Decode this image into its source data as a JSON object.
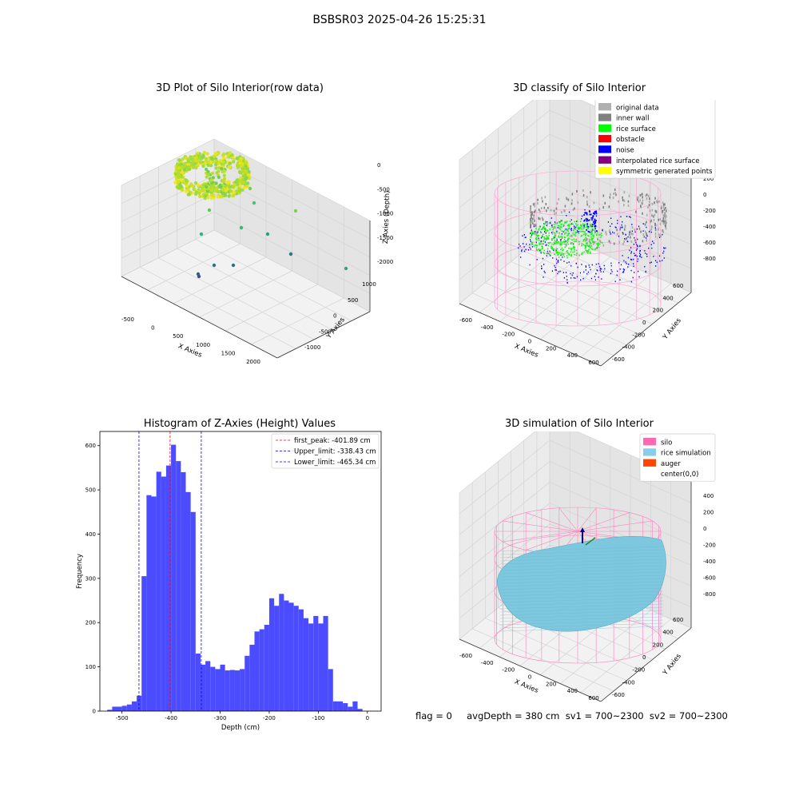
{
  "figure": {
    "suptitle": "BSBSR03 2025-04-26 15:25:31",
    "status_line": "flag = 0     avgDepth = 380 cm  sv1 = 700~2300  sv2 = 700~2300"
  },
  "chart_data": [
    {
      "type": "scatter3d",
      "title": "3D Plot of Silo Interior(row data)",
      "xlabel": "X Axies",
      "ylabel": "Y Axies",
      "zlabel": "Z Axies (Depth)",
      "xticks": [
        -500,
        0,
        500,
        1000,
        1500,
        2000
      ],
      "yticks": [
        -1000,
        -500,
        0,
        500,
        1000
      ],
      "zticks": [
        0,
        -500,
        -1000,
        -1500,
        -2000
      ],
      "xlim": [
        -700,
        2300
      ],
      "ylim": [
        -1200,
        1200
      ],
      "zlim": [
        -2300,
        100
      ],
      "colormap": "viridis",
      "grid": true
    },
    {
      "type": "scatter3d",
      "title": "3D classify of Silo Interior",
      "xlabel": "X Axies",
      "ylabel": "Y Axies",
      "zlabel": "Z Axies (Depth)",
      "xticks": [
        -600,
        -400,
        -200,
        0,
        200,
        400,
        600
      ],
      "yticks": [
        -600,
        -400,
        -200,
        0,
        200,
        400,
        600
      ],
      "zticks": [
        200,
        0,
        -200,
        -400,
        -600,
        -800
      ],
      "legend": [
        {
          "label": "original data",
          "color": "#b0b0b0"
        },
        {
          "label": "inner wall",
          "color": "#808080"
        },
        {
          "label": "rice surface",
          "color": "#00ff00"
        },
        {
          "label": "obstacle",
          "color": "#ff0000"
        },
        {
          "label": "noise",
          "color": "#0000ff"
        },
        {
          "label": "interpolated rice surface",
          "color": "#800080"
        },
        {
          "label": "symmetric generated points",
          "color": "#ffff00"
        }
      ],
      "legend_loc": "upper right",
      "grid": true
    },
    {
      "type": "bar",
      "title": "Histogram of Z-Axies (Height) Values",
      "xlabel": "Depth (cm)",
      "ylabel": "Frequency",
      "bar_color": "#4b4bff",
      "bin_width": 10,
      "bin_left_edges": [
        -530,
        -520,
        -510,
        -500,
        -490,
        -480,
        -470,
        -460,
        -450,
        -440,
        -430,
        -420,
        -410,
        -400,
        -390,
        -380,
        -370,
        -360,
        -350,
        -340,
        -330,
        -320,
        -310,
        -300,
        -290,
        -280,
        -270,
        -260,
        -250,
        -240,
        -230,
        -220,
        -210,
        -200,
        -190,
        -180,
        -170,
        -160,
        -150,
        -140,
        -130,
        -120,
        -110,
        -100,
        -90,
        -80,
        -70,
        -60,
        -50,
        -40,
        -30,
        -20,
        -10
      ],
      "values": [
        3,
        10,
        10,
        12,
        15,
        22,
        35,
        305,
        488,
        485,
        541,
        530,
        555,
        602,
        565,
        540,
        495,
        450,
        130,
        105,
        113,
        100,
        95,
        105,
        92,
        93,
        92,
        95,
        125,
        150,
        180,
        185,
        195,
        255,
        238,
        265,
        250,
        245,
        238,
        230,
        210,
        198,
        215,
        198,
        215,
        95,
        22,
        22,
        18,
        10,
        22,
        5,
        0
      ],
      "xticks": [
        -500,
        -400,
        -300,
        -200,
        -100,
        0
      ],
      "yticks": [
        0,
        100,
        200,
        300,
        400,
        500,
        600
      ],
      "xlim": [
        -545,
        28
      ],
      "ylim": [
        0,
        632
      ],
      "vlines": [
        {
          "x": -401.89,
          "color": "#ff0000",
          "label": "first_peak: -401.89 cm"
        },
        {
          "x": -338.43,
          "color": "#0000ff",
          "label": "Upper_limit: -338.43 cm"
        },
        {
          "x": -465.34,
          "color": "#0000ff",
          "label": "Lower_limit: -465.34 cm"
        }
      ],
      "legend_loc": "upper right",
      "grid": false
    },
    {
      "type": "surface3d",
      "title": "3D simulation of Silo Interior",
      "xlabel": "X Axies",
      "ylabel": "Y Axies",
      "zlabel": "Z Axies (Depth)",
      "xticks": [
        -600,
        -400,
        -200,
        0,
        200,
        400,
        600
      ],
      "yticks": [
        -600,
        -400,
        -200,
        0,
        200,
        400,
        600
      ],
      "zticks": [
        400,
        200,
        0,
        -200,
        -400,
        -600,
        -800
      ],
      "legend": [
        {
          "label": "silo",
          "color": "#ff69b4"
        },
        {
          "label": "rice simulation",
          "color": "#87ceeb"
        },
        {
          "label": "auger",
          "color": "#ff4500"
        },
        {
          "label": "center(0,0)",
          "color": "#ffffff"
        }
      ],
      "legend_loc": "upper right",
      "grid": true
    }
  ]
}
